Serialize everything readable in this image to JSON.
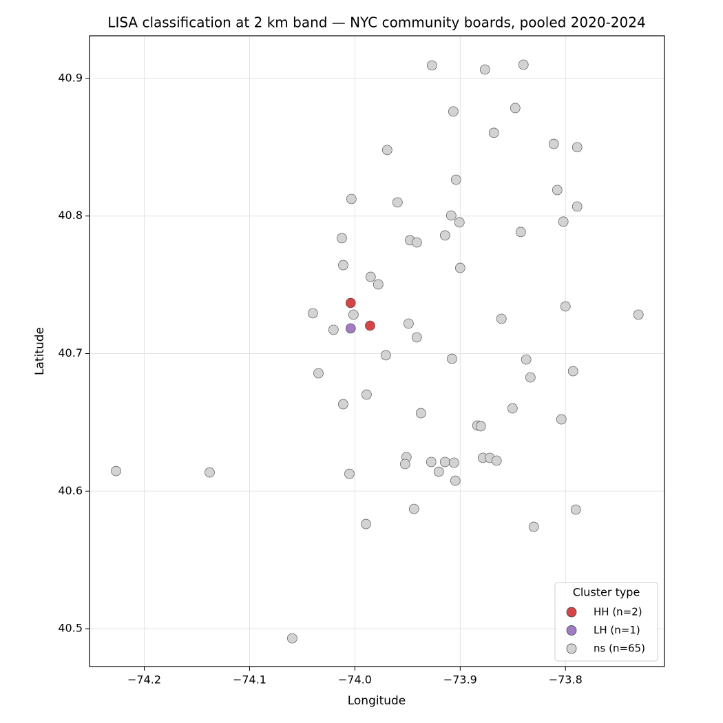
{
  "chart_data": {
    "type": "scatter",
    "title": "LISA classification at 2 km band — NYC community boards, pooled 2020-2024",
    "x_label": "Longitude",
    "y_label": "Latitude",
    "legend_title": "Cluster type",
    "legend_position": "lower right",
    "grid": true,
    "xlim": [
      -74.252,
      -73.706
    ],
    "ylim": [
      40.4725,
      40.931
    ],
    "xticks": [
      {
        "value": -74.2,
        "label": "−74.2"
      },
      {
        "value": -74.1,
        "label": "−74.1"
      },
      {
        "value": -74.0,
        "label": "−74.0"
      },
      {
        "value": -73.9,
        "label": "−73.9"
      },
      {
        "value": -73.8,
        "label": "−73.8"
      }
    ],
    "yticks": [
      40.5,
      40.6,
      40.7,
      40.8,
      40.9
    ],
    "series": [
      {
        "name": "HH (n=2)",
        "color": "#d64545",
        "x": [
          -74.004,
          -73.9856
        ],
        "values": [
          40.7368,
          40.7203
        ]
      },
      {
        "name": "LH (n=1)",
        "color": "#a07cc5",
        "x": [
          -74.004
        ],
        "values": [
          40.7183
        ]
      },
      {
        "name": "ns (n=65)",
        "color": "#d3d3d3",
        "x": [
          -73.9268,
          -73.8765,
          -73.8399,
          -73.9065,
          -73.8477,
          -73.868,
          -73.9693,
          -73.8111,
          -73.7889,
          -73.9039,
          -73.8078,
          -74.0033,
          -73.9595,
          -73.7889,
          -73.9085,
          -73.9007,
          -73.802,
          -74.0124,
          -73.9477,
          -73.9412,
          -73.9144,
          -73.8425,
          -74.0111,
          -73.9,
          -73.985,
          -73.9778,
          -74.0399,
          -74.0013,
          -73.8,
          -73.7307,
          -73.8608,
          -73.949,
          -74.0203,
          -73.9412,
          -73.9706,
          -73.9078,
          -73.8373,
          -74.0346,
          -73.8333,
          -73.7928,
          -73.9889,
          -74.0111,
          -73.9373,
          -73.8503,
          -73.8837,
          -73.8804,
          -73.8039,
          -74.2268,
          -74.1379,
          -73.951,
          -73.9523,
          -73.9275,
          -73.9144,
          -73.9059,
          -73.9203,
          -73.8784,
          -73.8719,
          -73.8654,
          -74.0052,
          -73.9046,
          -73.9438,
          -73.7902,
          -73.9895,
          -73.8301,
          -74.0595
        ],
        "values": [
          40.9095,
          40.9065,
          40.91,
          40.876,
          40.8785,
          40.8605,
          40.848,
          40.8524,
          40.85,
          40.8264,
          40.8189,
          40.8124,
          40.8099,
          40.8069,
          40.8004,
          40.7954,
          40.7959,
          40.7839,
          40.7824,
          40.7808,
          40.7859,
          40.7884,
          40.7643,
          40.7623,
          40.7558,
          40.7503,
          40.7293,
          40.7283,
          40.7343,
          40.7283,
          40.7253,
          40.7218,
          40.7173,
          40.7118,
          40.6988,
          40.6962,
          40.6957,
          40.6857,
          40.6827,
          40.6872,
          40.6702,
          40.6632,
          40.6567,
          40.6602,
          40.6477,
          40.6472,
          40.6522,
          40.6146,
          40.6136,
          40.6247,
          40.6197,
          40.6212,
          40.6212,
          40.6207,
          40.6141,
          40.6242,
          40.6242,
          40.6222,
          40.6126,
          40.6076,
          40.5871,
          40.5866,
          40.5761,
          40.5741,
          40.493
        ]
      }
    ]
  }
}
